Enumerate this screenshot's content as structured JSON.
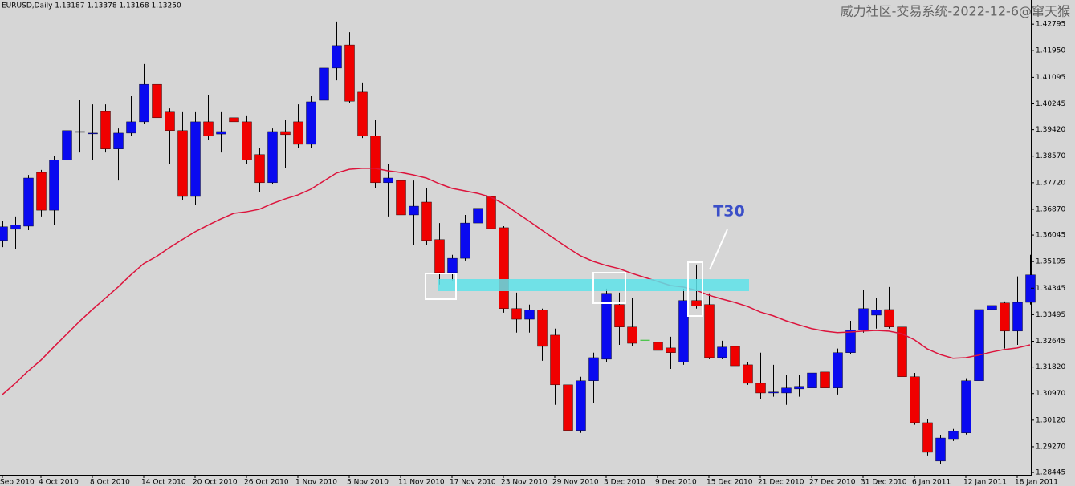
{
  "chart_data": {
    "type": "candlestick",
    "title": "EURUSD,Daily  1.13187 1.13378 1.13168 1.13250",
    "watermark": "威力社区-交易系统-2022-12-6@窜天猴",
    "annotation": "T30",
    "categories": [
      "Sep 2010",
      null,
      null,
      "4 Oct 2010",
      null,
      null,
      null,
      "8 Oct 2010",
      null,
      null,
      null,
      "14 Oct 2010",
      null,
      null,
      null,
      "20 Oct 2010",
      null,
      null,
      null,
      "26 Oct 2010",
      null,
      null,
      null,
      "1 Nov 2010",
      null,
      null,
      null,
      "5 Nov 2010",
      null,
      null,
      null,
      "11 Nov 2010",
      null,
      null,
      null,
      "17 Nov 2010",
      null,
      null,
      null,
      "23 Nov 2010",
      null,
      null,
      null,
      "29 Nov 2010",
      null,
      null,
      null,
      "3 Dec 2010",
      null,
      null,
      null,
      "9 Dec 2010",
      null,
      null,
      null,
      "15 Dec 2010",
      null,
      null,
      null,
      "21 Dec 2010",
      null,
      null,
      null,
      "27 Dec 2010",
      null,
      null,
      null,
      "31 Dec 2010",
      null,
      null,
      null,
      "6 Jan 2011",
      null,
      null,
      null,
      "12 Jan 2011",
      null,
      null,
      null,
      "18 Jan 2011",
      null
    ],
    "open": [
      1.3587,
      1.3623,
      1.3633,
      1.3805,
      1.3684,
      1.3844,
      1.3934,
      1.3929,
      1.4,
      1.388,
      1.3931,
      1.3967,
      1.4087,
      1.3998,
      1.3939,
      1.3728,
      1.3967,
      1.3928,
      1.398,
      1.3967,
      1.3862,
      1.3772,
      1.3936,
      1.3967,
      1.3895,
      1.4036,
      1.4139,
      1.4213,
      1.4062,
      1.3921,
      1.3772,
      1.3779,
      1.3669,
      1.371,
      1.359,
      1.3484,
      1.353,
      1.3643,
      1.3728,
      1.3628,
      1.3369,
      1.3335,
      1.3364,
      1.3284,
      1.3125,
      1.2979,
      1.3138,
      1.3207,
      1.3382,
      1.331,
      1.3269,
      1.3261,
      1.3243,
      1.3197,
      1.3395,
      1.3382,
      1.3212,
      1.3248,
      1.3189,
      1.313,
      1.3099,
      1.3099,
      1.3112,
      1.3115,
      1.3166,
      1.3115,
      1.3228,
      1.33,
      1.3348,
      1.3366,
      1.331,
      1.3151,
      1.3004,
      1.2881,
      1.295,
      1.2971,
      1.3138,
      1.3366,
      1.3387,
      1.3297,
      1.3389
    ],
    "high": [
      1.3651,
      1.3664,
      1.3797,
      1.3813,
      1.3857,
      1.3959,
      1.4036,
      1.4023,
      1.4023,
      1.3946,
      1.4049,
      1.4152,
      1.4164,
      1.401,
      1.3998,
      1.3998,
      1.4054,
      1.3998,
      1.4087,
      1.3985,
      1.3882,
      1.3946,
      1.3972,
      1.4023,
      1.4049,
      1.4203,
      1.4288,
      1.4254,
      1.4093,
      1.3972,
      1.3831,
      1.3818,
      1.3779,
      1.3754,
      1.3643,
      1.3541,
      1.3669,
      1.3736,
      1.3792,
      1.3633,
      1.342,
      1.3382,
      1.3369,
      1.3305,
      1.3146,
      1.3151,
      1.3228,
      1.3433,
      1.342,
      1.3402,
      1.3279,
      1.3323,
      1.3279,
      1.3433,
      1.351,
      1.3418,
      1.3266,
      1.3361,
      1.3197,
      1.3228,
      1.3189,
      1.3156,
      1.3156,
      1.3171,
      1.3279,
      1.3241,
      1.333,
      1.3428,
      1.3402,
      1.3438,
      1.3323,
      1.3163,
      1.3015,
      1.2963,
      1.2984,
      1.3146,
      1.3382,
      1.3459,
      1.3392,
      1.3472,
      1.3541
    ],
    "low": [
      1.3566,
      1.3561,
      1.362,
      1.3664,
      1.3638,
      1.3805,
      1.3869,
      1.3844,
      1.3869,
      1.3779,
      1.3921,
      1.3959,
      1.3972,
      1.3831,
      1.3715,
      1.3702,
      1.3908,
      1.3869,
      1.3934,
      1.3831,
      1.3741,
      1.3767,
      1.3818,
      1.3882,
      1.3882,
      1.3985,
      1.41,
      1.4028,
      1.3915,
      1.3754,
      1.3664,
      1.3638,
      1.3574,
      1.3574,
      1.3446,
      1.3459,
      1.3523,
      1.3613,
      1.3574,
      1.3356,
      1.3292,
      1.3292,
      1.3202,
      1.3061,
      1.2971,
      1.2971,
      1.3066,
      1.3197,
      1.3253,
      1.3248,
      1.3181,
      1.3163,
      1.3176,
      1.3189,
      1.3369,
      1.3207,
      1.3207,
      1.3151,
      1.3125,
      1.3079,
      1.3087,
      1.3061,
      1.3087,
      1.3074,
      1.3104,
      1.3094,
      1.3223,
      1.3292,
      1.3305,
      1.3305,
      1.3138,
      1.2997,
      1.2899,
      1.2873,
      1.2945,
      1.2966,
      1.3087,
      1.3369,
      1.3241,
      1.3253,
      1.3382
    ],
    "close": [
      1.3631,
      1.3636,
      1.3787,
      1.3684,
      1.3844,
      1.3939,
      1.3936,
      1.3931,
      1.388,
      1.3931,
      1.3967,
      1.4087,
      1.398,
      1.3939,
      1.3728,
      1.3967,
      1.3921,
      1.3936,
      1.3967,
      1.3844,
      1.3772,
      1.3936,
      1.3926,
      1.3895,
      1.4031,
      1.4139,
      1.4211,
      1.4033,
      1.3921,
      1.3772,
      1.3787,
      1.3669,
      1.3697,
      1.3587,
      1.3484,
      1.353,
      1.3643,
      1.369,
      1.3625,
      1.3369,
      1.3335,
      1.3364,
      1.3248,
      1.3125,
      1.2979,
      1.3138,
      1.3212,
      1.3418,
      1.331,
      1.3258,
      1.3269,
      1.3235,
      1.3228,
      1.3395,
      1.3377,
      1.3212,
      1.3246,
      1.3186,
      1.313,
      1.3099,
      1.3102,
      1.3115,
      1.312,
      1.3163,
      1.3115,
      1.3228,
      1.33,
      1.3369,
      1.3364,
      1.331,
      1.3151,
      1.3004,
      1.2909,
      1.2955,
      1.2976,
      1.3138,
      1.3366,
      1.3379,
      1.3297,
      1.3389,
      1.3477
    ],
    "up_color": "#0a0af0",
    "down_color": "#f00000",
    "doji_color": "#22c022",
    "ma": {
      "color": "#dc143c",
      "values": [
        1.3094,
        1.313,
        1.3169,
        1.3204,
        1.3246,
        1.3287,
        1.3328,
        1.3366,
        1.3402,
        1.3438,
        1.3477,
        1.3513,
        1.3536,
        1.3564,
        1.359,
        1.3615,
        1.3636,
        1.3656,
        1.3674,
        1.3679,
        1.3687,
        1.3705,
        1.372,
        1.3733,
        1.3751,
        1.3777,
        1.3803,
        1.3815,
        1.3818,
        1.3818,
        1.381,
        1.3805,
        1.3797,
        1.3787,
        1.3769,
        1.3754,
        1.3746,
        1.3738,
        1.3726,
        1.3705,
        1.3677,
        1.3649,
        1.362,
        1.3592,
        1.3564,
        1.3538,
        1.352,
        1.3507,
        1.3497,
        1.3482,
        1.3469,
        1.3456,
        1.3443,
        1.3438,
        1.3428,
        1.3412,
        1.34,
        1.3389,
        1.3376,
        1.3358,
        1.3346,
        1.333,
        1.3317,
        1.3305,
        1.3297,
        1.3292,
        1.3294,
        1.3297,
        1.3299,
        1.3297,
        1.3289,
        1.3269,
        1.324,
        1.3222,
        1.321,
        1.3212,
        1.322,
        1.323,
        1.3238,
        1.3243,
        1.3253
      ]
    },
    "ylim": [
      1.2837,
      1.4357
    ],
    "yticks": [
      1.42795,
      {
        "value": 1.4195,
        "label": "1.41950"
      },
      1.41095,
      1.40245,
      {
        "value": 1.3942,
        "label": "1.39420"
      },
      {
        "value": 1.3857,
        "label": "1.38570"
      },
      {
        "value": 1.3772,
        "label": "1.37720"
      },
      {
        "value": 1.3687,
        "label": "1.36870"
      },
      1.36045,
      1.35195,
      1.34345,
      1.33495,
      1.32645,
      {
        "value": 1.3182,
        "label": "1.31820"
      },
      {
        "value": 1.3097,
        "label": "1.30970"
      },
      {
        "value": 1.3012,
        "label": "1.30120"
      },
      {
        "value": 1.2927,
        "label": "1.29270"
      },
      1.28445
    ]
  }
}
